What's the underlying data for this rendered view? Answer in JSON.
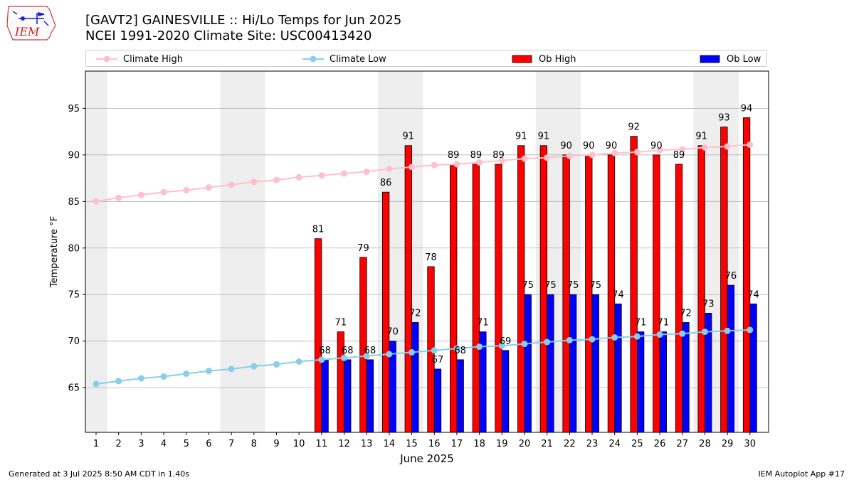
{
  "header": {
    "title_line1": "[GAVT2] GAINESVILLE :: Hi/Lo Temps for Jun 2025",
    "title_line2": "NCEI 1991-2020 Climate Site: USC00413420",
    "logo_text": "IEM"
  },
  "legend": {
    "items": [
      {
        "label": "Climate High",
        "color": "#ffc0cb",
        "kind": "line"
      },
      {
        "label": "Climate Low",
        "color": "#87ceeb",
        "kind": "line"
      },
      {
        "label": "Ob High",
        "color": "#ff0000",
        "kind": "bar"
      },
      {
        "label": "Ob Low",
        "color": "#0000ff",
        "kind": "bar"
      }
    ]
  },
  "footer": {
    "left": "Generated at 3 Jul 2025 8:50 AM CDT in 1.40s",
    "right": "IEM Autoplot App #17"
  },
  "chart_data": {
    "type": "bar",
    "xlabel": "June 2025",
    "ylabel": "Temperature °F",
    "ylim": [
      60.2,
      99.0
    ],
    "yticks": [
      65,
      70,
      75,
      80,
      85,
      90,
      95
    ],
    "grid": true,
    "legend_position": "top",
    "weekend_shading": [
      [
        1,
        1
      ],
      [
        7,
        8
      ],
      [
        14,
        15
      ],
      [
        21,
        22
      ],
      [
        28,
        29
      ]
    ],
    "categories": [
      "1",
      "2",
      "3",
      "4",
      "5",
      "6",
      "7",
      "8",
      "9",
      "10",
      "11",
      "12",
      "13",
      "14",
      "15",
      "16",
      "17",
      "18",
      "19",
      "20",
      "21",
      "22",
      "23",
      "24",
      "25",
      "26",
      "27",
      "28",
      "29",
      "30"
    ],
    "series": [
      {
        "name": "Climate High",
        "type": "line",
        "color": "#ffc0cb",
        "values": [
          85.0,
          85.4,
          85.7,
          86.0,
          86.2,
          86.5,
          86.8,
          87.1,
          87.3,
          87.6,
          87.8,
          88.0,
          88.2,
          88.5,
          88.7,
          88.9,
          89.0,
          89.2,
          89.4,
          89.6,
          89.7,
          89.9,
          90.0,
          90.2,
          90.3,
          90.5,
          90.6,
          90.8,
          90.9,
          91.1
        ]
      },
      {
        "name": "Climate Low",
        "type": "line",
        "color": "#87ceeb",
        "values": [
          65.4,
          65.7,
          66.0,
          66.2,
          66.5,
          66.8,
          67.0,
          67.3,
          67.5,
          67.8,
          68.0,
          68.2,
          68.4,
          68.6,
          68.8,
          69.0,
          69.2,
          69.4,
          69.5,
          69.7,
          69.9,
          70.1,
          70.2,
          70.4,
          70.5,
          70.7,
          70.8,
          71.0,
          71.1,
          71.2
        ]
      },
      {
        "name": "Ob High",
        "type": "bar",
        "color": "#ff0000",
        "values": [
          null,
          null,
          null,
          null,
          null,
          null,
          null,
          null,
          null,
          null,
          81,
          71,
          79,
          86,
          91,
          78,
          89,
          89,
          89,
          91,
          91,
          90,
          90,
          90,
          92,
          90,
          89,
          91,
          93,
          94
        ]
      },
      {
        "name": "Ob Low",
        "type": "bar",
        "color": "#0000ff",
        "values": [
          null,
          null,
          null,
          null,
          null,
          null,
          null,
          null,
          null,
          null,
          68,
          68,
          68,
          70,
          72,
          67,
          68,
          71,
          69,
          75,
          75,
          75,
          75,
          74,
          71,
          71,
          72,
          73,
          76,
          74
        ]
      }
    ]
  }
}
